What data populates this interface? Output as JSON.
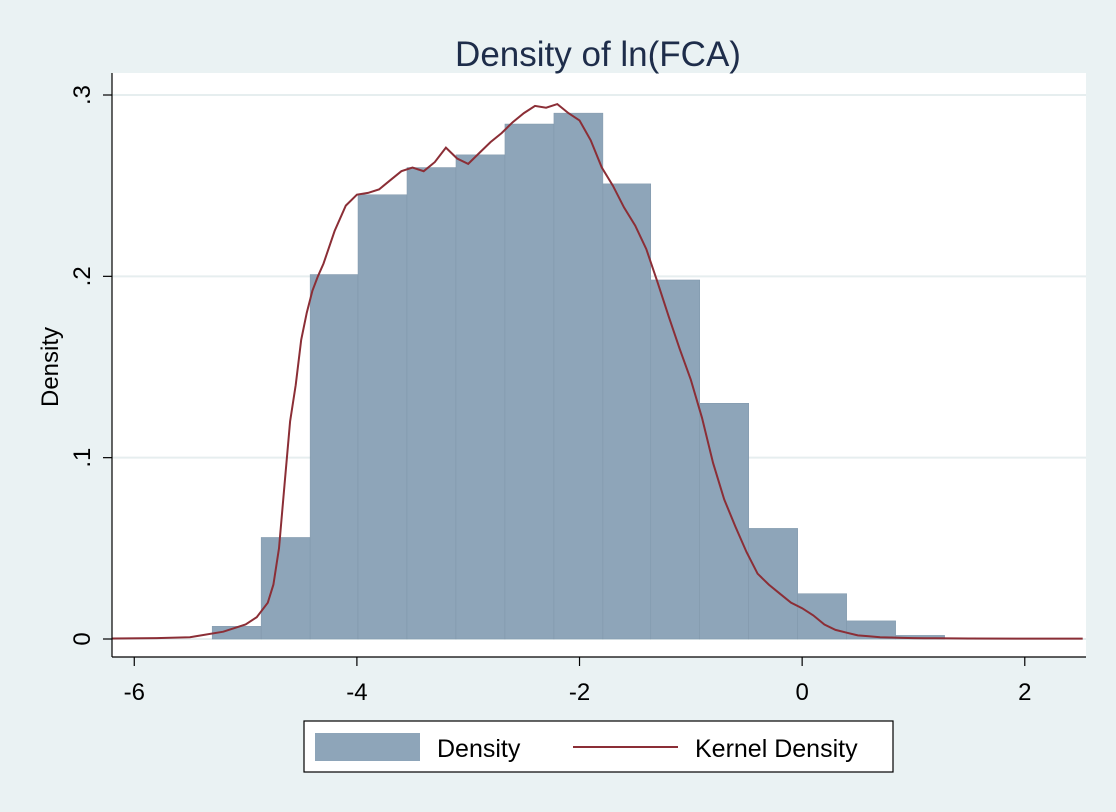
{
  "chart_data": {
    "type": "bar",
    "title": "Density of ln(FCA)",
    "xlabel": "",
    "ylabel": "Density",
    "xlim": [
      -6.2,
      2.55
    ],
    "ylim": [
      0,
      0.3
    ],
    "x_ticks": [
      -6,
      -4,
      -2,
      0,
      2
    ],
    "x_tick_labels": [
      "-6",
      "-4",
      "-2",
      "0",
      "2"
    ],
    "y_ticks": [
      0,
      0.1,
      0.2,
      0.3
    ],
    "y_tick_labels": [
      "0",
      ".1",
      ".2",
      ".3"
    ],
    "grid": true,
    "legend_position": "bottom",
    "histogram": {
      "name": "Density",
      "color": "#8ea5b9",
      "bins": [
        {
          "x0": -5.3,
          "x1": -4.86,
          "value": 0.007
        },
        {
          "x0": -4.86,
          "x1": -4.42,
          "value": 0.056
        },
        {
          "x0": -4.42,
          "x1": -3.99,
          "value": 0.201
        },
        {
          "x0": -3.99,
          "x1": -3.55,
          "value": 0.245
        },
        {
          "x0": -3.55,
          "x1": -3.11,
          "value": 0.26
        },
        {
          "x0": -3.11,
          "x1": -2.67,
          "value": 0.267
        },
        {
          "x0": -2.67,
          "x1": -2.23,
          "value": 0.284
        },
        {
          "x0": -2.23,
          "x1": -1.79,
          "value": 0.29
        },
        {
          "x0": -1.79,
          "x1": -1.36,
          "value": 0.251
        },
        {
          "x0": -1.36,
          "x1": -0.92,
          "value": 0.198
        },
        {
          "x0": -0.92,
          "x1": -0.48,
          "value": 0.13
        },
        {
          "x0": -0.48,
          "x1": -0.04,
          "value": 0.061
        },
        {
          "x0": -0.04,
          "x1": 0.4,
          "value": 0.025
        },
        {
          "x0": 0.4,
          "x1": 0.84,
          "value": 0.01
        },
        {
          "x0": 0.84,
          "x1": 1.28,
          "value": 0.002
        }
      ]
    },
    "kernel_density": {
      "name": "Kernel Density",
      "color": "#8b2e36",
      "x": [
        -6.2,
        -5.8,
        -5.5,
        -5.2,
        -5.0,
        -4.9,
        -4.8,
        -4.75,
        -4.7,
        -4.65,
        -4.6,
        -4.55,
        -4.5,
        -4.45,
        -4.4,
        -4.35,
        -4.3,
        -4.2,
        -4.1,
        -4.0,
        -3.9,
        -3.8,
        -3.7,
        -3.6,
        -3.5,
        -3.4,
        -3.3,
        -3.2,
        -3.1,
        -3.0,
        -2.9,
        -2.8,
        -2.7,
        -2.6,
        -2.5,
        -2.4,
        -2.3,
        -2.2,
        -2.1,
        -2.0,
        -1.9,
        -1.8,
        -1.7,
        -1.6,
        -1.5,
        -1.4,
        -1.3,
        -1.2,
        -1.1,
        -1.0,
        -0.9,
        -0.8,
        -0.7,
        -0.6,
        -0.5,
        -0.4,
        -0.3,
        -0.2,
        -0.1,
        0.0,
        0.1,
        0.2,
        0.3,
        0.4,
        0.5,
        0.6,
        0.7,
        0.8,
        0.9,
        1.0,
        1.1,
        1.2,
        1.5,
        2.0,
        2.52
      ],
      "y": [
        0.0003,
        0.0005,
        0.001,
        0.004,
        0.008,
        0.012,
        0.02,
        0.03,
        0.05,
        0.085,
        0.12,
        0.14,
        0.165,
        0.18,
        0.192,
        0.2,
        0.207,
        0.225,
        0.239,
        0.245,
        0.246,
        0.248,
        0.253,
        0.258,
        0.26,
        0.258,
        0.263,
        0.271,
        0.265,
        0.262,
        0.268,
        0.274,
        0.279,
        0.285,
        0.29,
        0.294,
        0.293,
        0.295,
        0.29,
        0.286,
        0.275,
        0.26,
        0.25,
        0.238,
        0.228,
        0.215,
        0.197,
        0.178,
        0.16,
        0.143,
        0.122,
        0.097,
        0.077,
        0.062,
        0.048,
        0.036,
        0.03,
        0.025,
        0.02,
        0.017,
        0.013,
        0.008,
        0.005,
        0.0035,
        0.002,
        0.0015,
        0.001,
        0.0008,
        0.0006,
        0.0005,
        0.0004,
        0.0004,
        0.0003,
        0.0002,
        0.0002
      ]
    }
  }
}
